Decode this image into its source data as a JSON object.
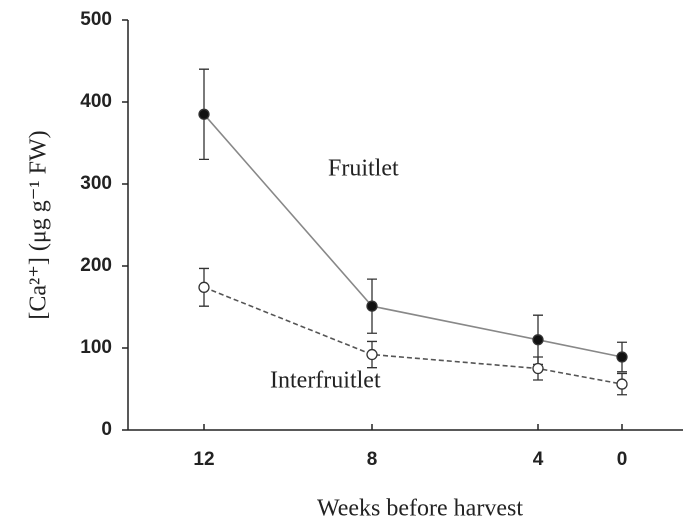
{
  "chart_data": {
    "type": "line",
    "xlabel": "Weeks before harvest",
    "ylabel": "[Ca²⁺] (μg g⁻¹ FW)",
    "categories": [
      "12",
      "8",
      "4",
      "0"
    ],
    "series": [
      {
        "name": "Fruitlet",
        "color": "#888888",
        "marker": "filled",
        "dashed": false,
        "values": [
          385,
          151,
          110,
          89
        ],
        "errors": [
          55,
          33,
          30,
          18
        ]
      },
      {
        "name": "Interfruitlet",
        "color": "#555555",
        "marker": "open",
        "dashed": true,
        "values": [
          174,
          92,
          75,
          56
        ],
        "errors": [
          23,
          16,
          14,
          13
        ]
      }
    ],
    "ylim": [
      0,
      500
    ],
    "yticks": [
      0,
      100,
      200,
      300,
      400,
      500
    ]
  }
}
